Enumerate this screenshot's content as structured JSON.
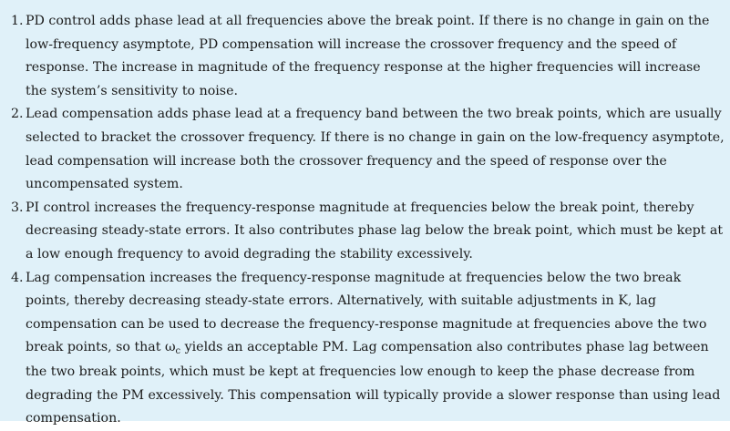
{
  "items": [
    {
      "number": "1.",
      "text": "PD control adds phase lead at all frequencies above the break point. If there is no change in gain on the low-frequency asymptote, PD compensation will increase the crossover frequency and the speed of response. The increase in magnitude of the frequency response at the higher frequencies will increase the system’s sensitivity to noise."
    },
    {
      "number": "2.",
      "text": "Lead compensation adds phase lead at a frequency band between the two break points, which are usually selected to bracket the crossover frequency. If there is no change in gain on the low-frequency asymptote, lead compensation will increase both the crossover frequency and the speed of response over the uncompensated system."
    },
    {
      "number": "3.",
      "text": "PI control increases the frequency-response magnitude at frequencies below the break point, thereby decreasing steady-state errors. It also contributes phase lag below the break point, which must be kept at a low enough frequency to avoid degrading the stability excessively."
    },
    {
      "number": "4.",
      "text_before": "Lag compensation increases the frequency-response magnitude at frequencies below the two break points, thereby decreasing steady-state errors. Alternatively, with suitable adjustments in K, lag compensation can be used to decrease the frequency-response magnitude at frequencies above the two break points, so that ω",
      "subscript": "c",
      "text_after": " yields an acceptable PM. Lag compensation also contributes phase lag between the two break points, which must be kept at frequencies low enough to keep the phase decrease from degrading the PM excessively. This compensation will typically provide a slower response than using lead compensation."
    }
  ],
  "colors": {
    "background": "#e0f1f9",
    "text": "#1b1b1b"
  }
}
